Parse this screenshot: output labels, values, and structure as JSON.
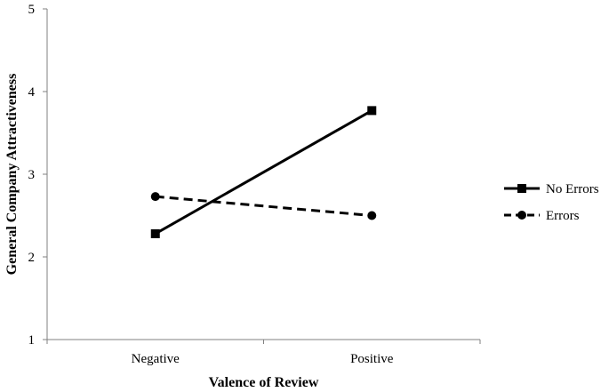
{
  "chart_data": {
    "type": "line",
    "categories": [
      "Negative",
      "Positive"
    ],
    "series": [
      {
        "name": "No Errors",
        "values": [
          2.28,
          3.77
        ],
        "line_style": "solid",
        "marker": "square",
        "color": "#000000"
      },
      {
        "name": "Errors",
        "values": [
          2.73,
          2.5
        ],
        "line_style": "dashed",
        "marker": "circle",
        "color": "#000000"
      }
    ],
    "title": "",
    "xlabel": "Valence of Review",
    "ylabel": "General Company Attractiveness",
    "ylim": [
      1,
      5
    ],
    "yticks": [
      "1",
      "2",
      "3",
      "4",
      "5"
    ],
    "grid": false,
    "legend_position": "right"
  }
}
